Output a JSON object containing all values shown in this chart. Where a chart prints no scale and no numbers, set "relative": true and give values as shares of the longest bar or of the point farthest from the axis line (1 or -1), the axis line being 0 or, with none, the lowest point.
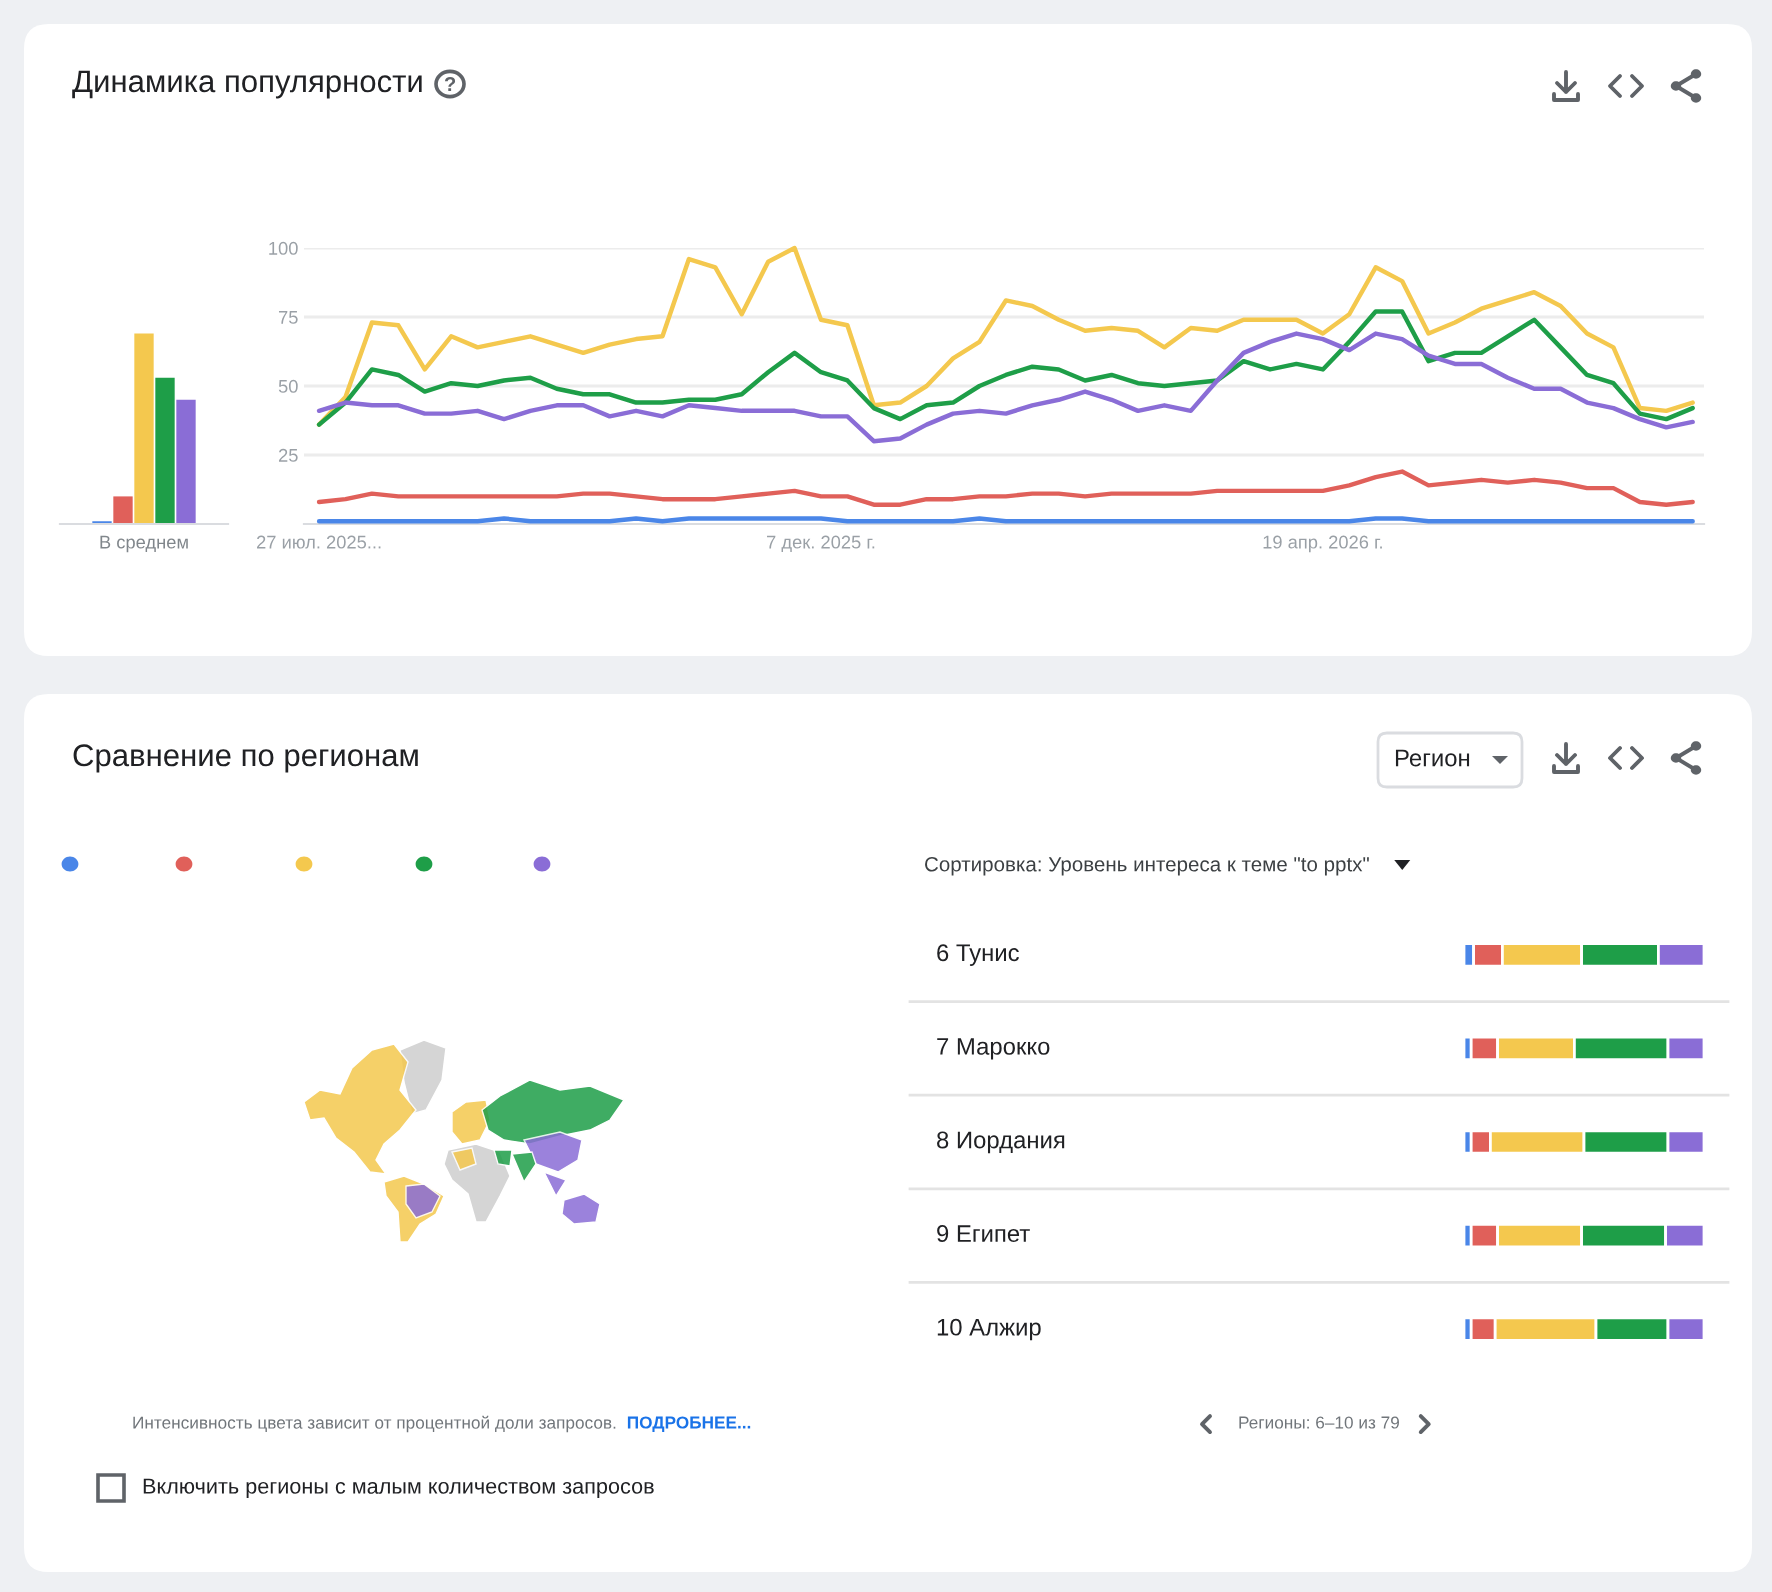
{
  "chart_data": [
    {
      "type": "bar",
      "title": "Динамика популярности",
      "categories": [
        "В среднем"
      ],
      "series": [
        {
          "color": "#4a86e8",
          "values": [
            1
          ]
        },
        {
          "color": "#e0605a",
          "values": [
            10
          ]
        },
        {
          "color": "#f4c84e",
          "values": [
            69
          ]
        },
        {
          "color": "#1e9e48",
          "values": [
            53
          ]
        },
        {
          "color": "#8a6dd6",
          "values": [
            45
          ]
        }
      ],
      "ylim": [
        0,
        100
      ],
      "tick_labels": "x"
    },
    {
      "type": "line",
      "x": [
        "2025-07-27",
        "2025-08-03",
        "2025-08-10",
        "2025-08-17",
        "2025-08-24",
        "2025-08-31",
        "2025-09-07",
        "2025-09-14",
        "2025-09-21",
        "2025-09-28",
        "2025-10-05",
        "2025-10-12",
        "2025-10-19",
        "2025-10-26",
        "2025-11-02",
        "2025-11-09",
        "2025-11-16",
        "2025-11-23",
        "2025-11-30",
        "2025-12-07",
        "2025-12-14",
        "2025-12-21",
        "2025-12-28",
        "2026-01-04",
        "2026-01-11",
        "2026-01-18",
        "2026-01-25",
        "2026-02-01",
        "2026-02-08",
        "2026-02-15",
        "2026-02-22",
        "2026-03-01",
        "2026-03-08",
        "2026-03-15",
        "2026-03-22",
        "2026-03-29",
        "2026-04-05",
        "2026-04-12",
        "2026-04-19",
        "2026-04-26",
        "2026-05-03",
        "2026-05-10",
        "2026-05-17",
        "2026-05-24",
        "2026-05-31",
        "2026-06-07",
        "2026-06-14",
        "2026-06-21",
        "2026-06-28",
        "2026-07-05",
        "2026-07-12",
        "2026-07-19",
        "2026-07-26"
      ],
      "series": [
        {
          "color": "#4a86e8",
          "values": [
            1,
            1,
            1,
            1,
            1,
            1,
            1,
            2,
            1,
            1,
            1,
            1,
            2,
            1,
            2,
            2,
            2,
            2,
            2,
            2,
            1,
            1,
            1,
            1,
            1,
            2,
            1,
            1,
            1,
            1,
            1,
            1,
            1,
            1,
            1,
            1,
            1,
            1,
            1,
            1,
            2,
            2,
            1,
            1,
            1,
            1,
            1,
            1,
            1,
            1,
            1,
            1,
            1
          ]
        },
        {
          "color": "#e0605a",
          "values": [
            8,
            9,
            11,
            10,
            10,
            10,
            10,
            10,
            10,
            10,
            11,
            11,
            10,
            9,
            9,
            9,
            10,
            11,
            12,
            10,
            10,
            7,
            7,
            9,
            9,
            10,
            10,
            11,
            11,
            10,
            11,
            11,
            11,
            11,
            12,
            12,
            12,
            12,
            12,
            14,
            17,
            19,
            14,
            15,
            16,
            15,
            16,
            15,
            13,
            13,
            8,
            7,
            8
          ]
        },
        {
          "color": "#f4c84e",
          "values": [
            36,
            46,
            73,
            72,
            56,
            68,
            64,
            66,
            68,
            65,
            62,
            65,
            67,
            68,
            96,
            93,
            76,
            95,
            100,
            74,
            72,
            43,
            44,
            50,
            60,
            66,
            81,
            79,
            74,
            70,
            71,
            70,
            64,
            71,
            70,
            74,
            74,
            74,
            69,
            76,
            93,
            88,
            69,
            73,
            78,
            81,
            84,
            79,
            69,
            64,
            42,
            41,
            44
          ]
        },
        {
          "color": "#1e9e48",
          "values": [
            36,
            44,
            56,
            54,
            48,
            51,
            50,
            52,
            53,
            49,
            47,
            47,
            44,
            44,
            45,
            45,
            47,
            55,
            62,
            55,
            52,
            42,
            38,
            43,
            44,
            50,
            54,
            57,
            56,
            52,
            54,
            51,
            50,
            51,
            52,
            59,
            56,
            58,
            56,
            66,
            77,
            77,
            59,
            62,
            62,
            68,
            74,
            64,
            54,
            51,
            40,
            38,
            42
          ]
        },
        {
          "color": "#8a6dd6",
          "values": [
            41,
            44,
            43,
            43,
            40,
            40,
            41,
            38,
            41,
            43,
            43,
            39,
            41,
            39,
            43,
            42,
            41,
            41,
            41,
            39,
            39,
            30,
            31,
            36,
            40,
            41,
            40,
            43,
            45,
            48,
            45,
            41,
            43,
            41,
            52,
            62,
            66,
            69,
            67,
            63,
            69,
            67,
            61,
            58,
            58,
            53,
            49,
            49,
            44,
            42,
            38,
            35,
            37
          ]
        }
      ],
      "xlim": [
        "2025-07-23",
        "2026-07-29"
      ],
      "xticks": [
        {
          "value": "2025-07-27",
          "label": "27 июл. 2025..."
        },
        {
          "value": "2025-12-07",
          "label": "7 дек. 2025 г."
        },
        {
          "value": "2026-04-19",
          "label": "19 апр. 2026 г."
        }
      ],
      "ylim": [
        0,
        100
      ],
      "yticks": [
        25,
        50,
        75,
        100
      ],
      "grid": "y"
    },
    {
      "type": "other",
      "title": "Сравнение по регионам",
      "annotations": [
        "Интенсивность цвета зависит от процентной доли запросов.",
        "ПОДРОБНЕЕ...",
        "Включить регионы с малым количеством запросов"
      ]
    },
    {
      "type": "bar",
      "orientation": "horizontal",
      "stacked": true,
      "relative": true,
      "subtitle": "Сортировка: Уровень интереса к теме \"to pptx\"",
      "categories": [
        "6 Тунис",
        "7 Марокко",
        "8 Иордания",
        "9 Египет",
        "10 Алжир"
      ],
      "series": [
        {
          "color": "#4a86e8",
          "values": [
            0.04,
            0.03,
            0.03,
            0.03,
            0.03
          ]
        },
        {
          "color": "#e0605a",
          "values": [
            0.12,
            0.11,
            0.08,
            0.11,
            0.1
          ]
        },
        {
          "color": "#f4c84e",
          "values": [
            0.33,
            0.32,
            0.39,
            0.35,
            0.42
          ]
        },
        {
          "color": "#1e9e48",
          "values": [
            0.32,
            0.39,
            0.35,
            0.35,
            0.3
          ]
        },
        {
          "color": "#8a6dd6",
          "values": [
            0.19,
            0.15,
            0.15,
            0.16,
            0.15
          ]
        }
      ],
      "annotations": [
        "Регион",
        "Регионы: 6–10 из 79"
      ]
    }
  ]
}
